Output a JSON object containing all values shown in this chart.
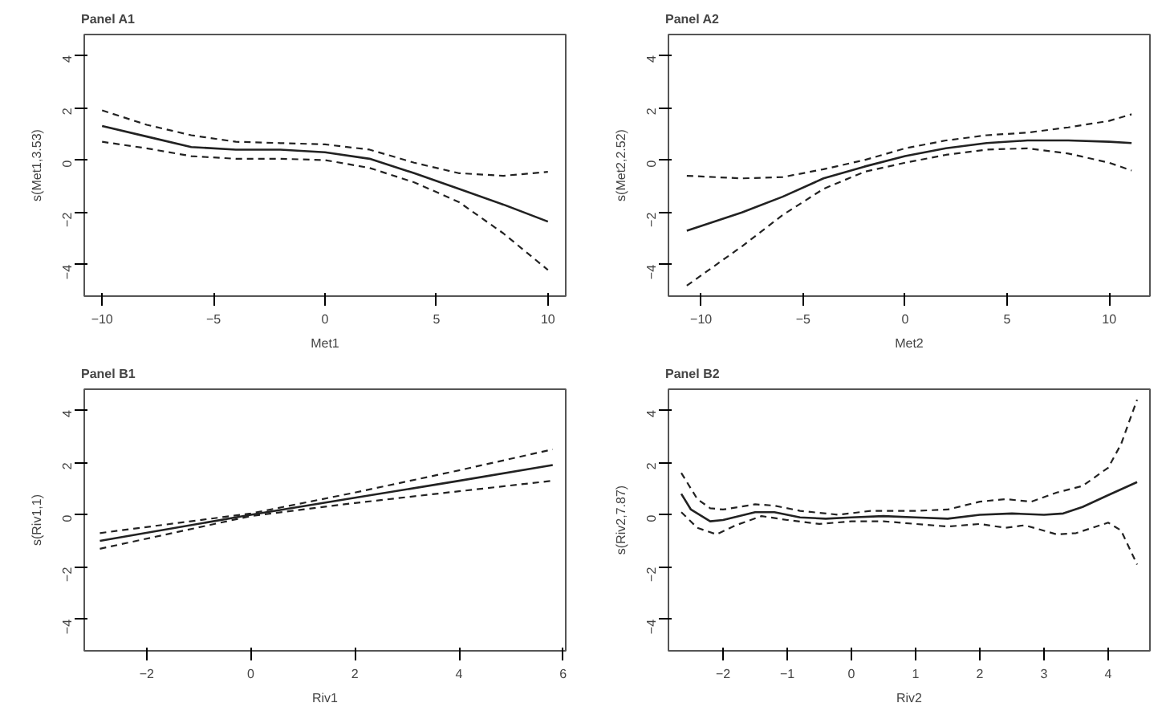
{
  "chart_data": [
    {
      "type": "line",
      "title": "Panel A1",
      "xlabel": "Met1",
      "ylabel": "s(Met1,3.53)",
      "xlim": [
        -10.8,
        10.8
      ],
      "ylim": [
        -5.2,
        4.8
      ],
      "xticks": [
        -10,
        -5,
        0,
        5,
        10
      ],
      "yticks": [
        4,
        2,
        0,
        -2,
        -4
      ],
      "grid": false,
      "marker": "none",
      "series": [
        {
          "color": "#222222",
          "line_style": "solid",
          "x": [
            -10,
            -8,
            -6,
            -4,
            -2,
            0,
            2,
            4,
            6,
            8,
            10
          ],
          "values": [
            1.3,
            0.9,
            0.5,
            0.4,
            0.4,
            0.3,
            0.05,
            -0.5,
            -1.1,
            -1.7,
            -2.35
          ]
        },
        {
          "color": "#222222",
          "line_style": "dashed",
          "x": [
            -10,
            -8,
            -6,
            -4,
            -2,
            0,
            2,
            4,
            6,
            8,
            10
          ],
          "values": [
            1.9,
            1.35,
            0.95,
            0.7,
            0.65,
            0.6,
            0.4,
            -0.1,
            -0.5,
            -0.6,
            -0.45
          ]
        },
        {
          "color": "#222222",
          "line_style": "dashed",
          "x": [
            -10,
            -8,
            -6,
            -4,
            -2,
            0,
            2,
            4,
            6,
            8,
            10
          ],
          "values": [
            0.7,
            0.45,
            0.15,
            0.05,
            0.05,
            0.0,
            -0.3,
            -0.85,
            -1.6,
            -2.8,
            -4.2
          ]
        }
      ]
    },
    {
      "type": "line",
      "title": "Panel A2",
      "xlabel": "Met2",
      "ylabel": "s(Met2,2.52)",
      "xlim": [
        -11.6,
        12.0
      ],
      "ylim": [
        -5.2,
        4.8
      ],
      "xticks": [
        -10,
        -5,
        0,
        5,
        10
      ],
      "yticks": [
        4,
        2,
        0,
        -2,
        -4
      ],
      "grid": false,
      "marker": "none",
      "series": [
        {
          "color": "#222222",
          "line_style": "solid",
          "x": [
            -10.7,
            -8,
            -6,
            -4,
            -2,
            0,
            2,
            4,
            6,
            8,
            10,
            11.1
          ],
          "values": [
            -2.7,
            -2.0,
            -1.4,
            -0.7,
            -0.25,
            0.15,
            0.45,
            0.65,
            0.75,
            0.75,
            0.7,
            0.65
          ]
        },
        {
          "color": "#222222",
          "line_style": "dashed",
          "x": [
            -10.7,
            -8,
            -6,
            -4,
            -2,
            0,
            2,
            4,
            6,
            8,
            10,
            11.1
          ],
          "values": [
            -0.6,
            -0.7,
            -0.65,
            -0.35,
            0.0,
            0.45,
            0.75,
            0.95,
            1.05,
            1.25,
            1.5,
            1.75
          ]
        },
        {
          "color": "#222222",
          "line_style": "dashed",
          "x": [
            -10.7,
            -8,
            -6,
            -4,
            -2,
            0,
            2,
            4,
            6,
            8,
            10,
            11.1
          ],
          "values": [
            -4.8,
            -3.3,
            -2.1,
            -1.1,
            -0.45,
            -0.1,
            0.2,
            0.4,
            0.45,
            0.25,
            -0.1,
            -0.4
          ]
        }
      ]
    },
    {
      "type": "line",
      "title": "Panel B1",
      "xlabel": "Riv1",
      "ylabel": "s(Riv1,1)",
      "xlim": [
        -3.2,
        6.05
      ],
      "ylim": [
        -5.2,
        4.8
      ],
      "xticks": [
        -2,
        0,
        2,
        4,
        6
      ],
      "yticks": [
        4,
        2,
        0,
        -2,
        -4
      ],
      "grid": false,
      "marker": "none",
      "series": [
        {
          "color": "#222222",
          "line_style": "solid",
          "x": [
            -2.9,
            0,
            2,
            4,
            5.8
          ],
          "values": [
            -1.0,
            0.0,
            0.65,
            1.3,
            1.9
          ]
        },
        {
          "color": "#222222",
          "line_style": "dashed",
          "x": [
            -2.9,
            0,
            2,
            4,
            5.8
          ],
          "values": [
            -0.7,
            0.05,
            0.85,
            1.7,
            2.5
          ]
        },
        {
          "color": "#222222",
          "line_style": "dashed",
          "x": [
            -2.9,
            0,
            2,
            4,
            5.8
          ],
          "values": [
            -1.3,
            -0.05,
            0.45,
            0.9,
            1.3
          ]
        }
      ]
    },
    {
      "type": "line",
      "title": "Panel B2",
      "xlabel": "Riv2",
      "ylabel": "s(Riv2,7.87)",
      "xlim": [
        -2.85,
        4.65
      ],
      "ylim": [
        -5.2,
        4.8
      ],
      "xticks": [
        -2,
        -1,
        0,
        1,
        2,
        3,
        4
      ],
      "yticks": [
        4,
        2,
        0,
        -2,
        -4
      ],
      "grid": false,
      "marker": "none",
      "series": [
        {
          "color": "#222222",
          "line_style": "solid",
          "x": [
            -2.65,
            -2.5,
            -2.2,
            -2,
            -1.5,
            -1.2,
            -0.8,
            -0.4,
            0,
            0.5,
            1,
            1.5,
            2,
            2.5,
            3,
            3.3,
            3.6,
            4,
            4.45
          ],
          "values": [
            0.8,
            0.2,
            -0.25,
            -0.2,
            0.1,
            0.1,
            -0.1,
            -0.15,
            -0.1,
            -0.05,
            -0.1,
            -0.15,
            0.0,
            0.05,
            0.0,
            0.05,
            0.3,
            0.75,
            1.25
          ]
        },
        {
          "color": "#222222",
          "line_style": "dashed",
          "x": [
            -2.65,
            -2.4,
            -2.2,
            -2,
            -1.5,
            -1.2,
            -0.8,
            -0.2,
            0.3,
            1,
            1.5,
            2,
            2.4,
            2.8,
            3.2,
            3.6,
            4,
            4.2,
            4.45
          ],
          "values": [
            1.6,
            0.6,
            0.25,
            0.2,
            0.4,
            0.35,
            0.15,
            0.0,
            0.15,
            0.15,
            0.2,
            0.5,
            0.6,
            0.5,
            0.85,
            1.1,
            1.8,
            2.7,
            4.4
          ]
        },
        {
          "color": "#222222",
          "line_style": "dashed",
          "x": [
            -2.65,
            -2.4,
            -2.1,
            -1.8,
            -1.4,
            -1,
            -0.5,
            0,
            0.5,
            1,
            1.5,
            2,
            2.4,
            2.7,
            3.2,
            3.5,
            4,
            4.2,
            4.45
          ],
          "values": [
            0.1,
            -0.5,
            -0.75,
            -0.4,
            -0.05,
            -0.2,
            -0.35,
            -0.25,
            -0.25,
            -0.35,
            -0.45,
            -0.35,
            -0.5,
            -0.4,
            -0.75,
            -0.7,
            -0.3,
            -0.6,
            -1.9
          ]
        }
      ]
    }
  ]
}
